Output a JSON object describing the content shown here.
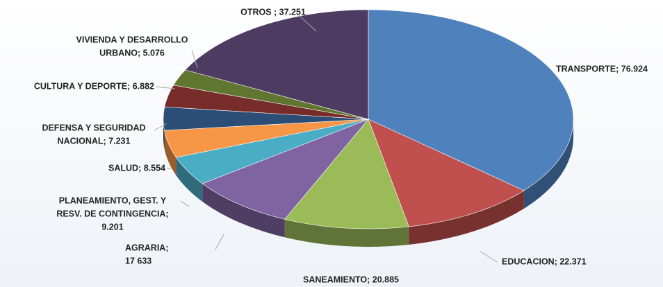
{
  "chart_data": {
    "type": "pie3d",
    "categories": [
      "TRANSPORTE",
      "EDUCACION",
      "SANEAMIENTO",
      "AGRARIA",
      "PLANEAMIENTO, GEST. Y RESV. DE CONTINGENCIA",
      "SALUD",
      "DEFENSA Y SEGURIDAD NACIONAL",
      "CULTURA Y DEPORTE",
      "VIVIENDA Y DESARROLLO URBANO",
      "OTROS"
    ],
    "values": [
      76.924,
      22.371,
      20.885,
      17.633,
      9.201,
      8.554,
      7.231,
      6.882,
      5.076,
      37.251
    ],
    "value_labels": [
      [
        "TRANSPORTE; 76.924"
      ],
      [
        "EDUCACION; 22.371"
      ],
      [
        "SANEAMIENTO; 20.885"
      ],
      [
        "AGRARIA;",
        "17 633"
      ],
      [
        "PLANEAMIENTO, GEST. Y",
        "RESV. DE CONTINGENCIA;",
        "9.201"
      ],
      [
        "SALUD; 8.554"
      ],
      [
        "DEFENSA Y SEGURIDAD",
        "NACIONAL; 7.231"
      ],
      [
        "CULTURA Y DEPORTE; 6.882"
      ],
      [
        "VIVIENDA Y DESARROLLO",
        "URBANO; 5.076"
      ],
      [
        "OTROS ; 37.251"
      ]
    ],
    "colors": [
      "#4f81bd",
      "#c0504d",
      "#9bbb59",
      "#8064a2",
      "#4bacc6",
      "#f79646",
      "#2c4d75",
      "#772c2a",
      "#5f7530",
      "#4d3b62"
    ]
  }
}
